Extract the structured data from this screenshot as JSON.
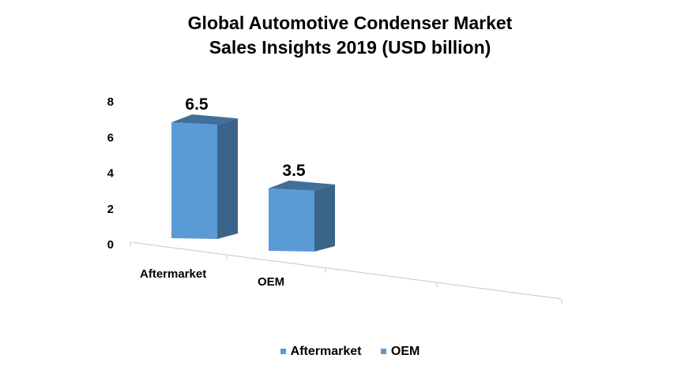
{
  "chart_data": {
    "type": "bar",
    "title_lines": [
      "Global Automotive Condenser Market",
      "Sales Insights 2019 (USD billion)"
    ],
    "categories": [
      "Aftermarket",
      "OEM"
    ],
    "series": [
      {
        "name": "Aftermarket",
        "values": [
          6.5,
          null
        ]
      },
      {
        "name": "OEM",
        "values": [
          null,
          3.5
        ]
      }
    ],
    "data_labels": [
      "6.5",
      "3.5"
    ],
    "y_ticks": [
      "0",
      "2",
      "4",
      "6",
      "8"
    ],
    "ylim": [
      0,
      8
    ],
    "grid": false,
    "legend_position": "bottom",
    "style": "3d-column",
    "colors": {
      "bar_front": "#5b9bd5",
      "bar_side": "#3a6589",
      "bar_top": "#416f9b",
      "axis": "#c8c8c8"
    }
  }
}
